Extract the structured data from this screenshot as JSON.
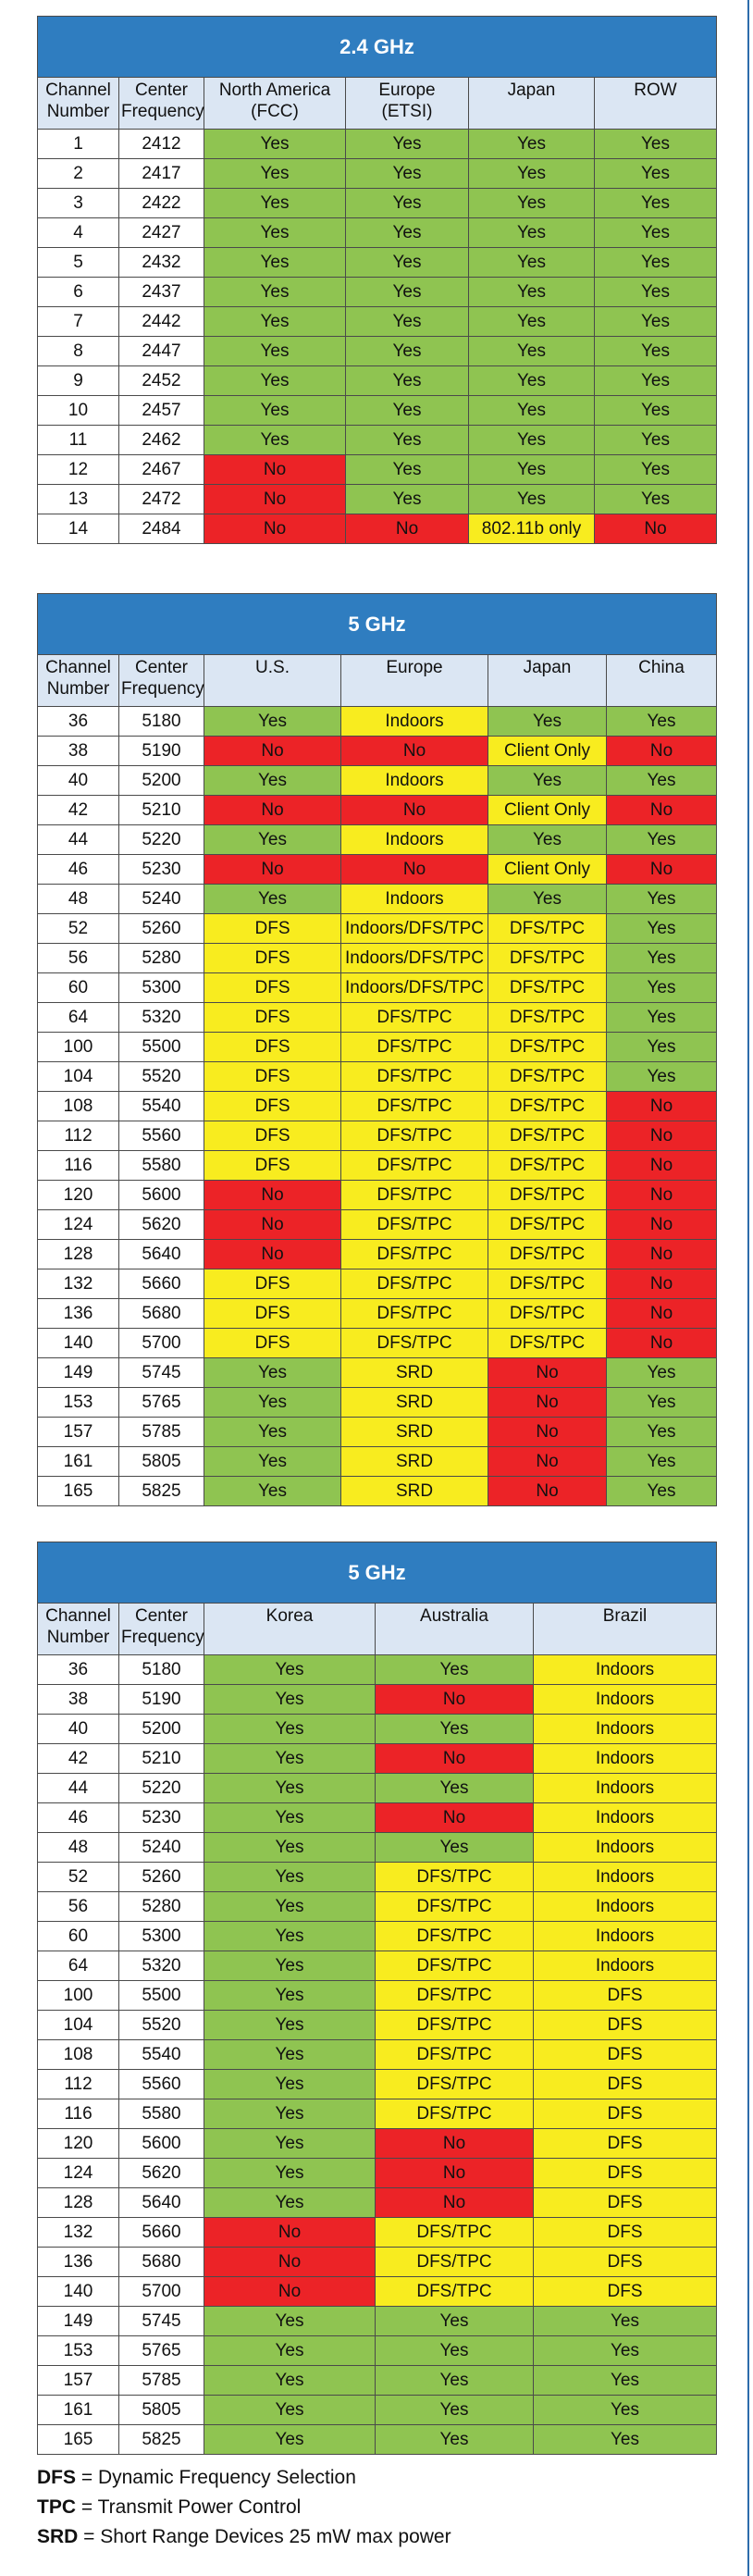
{
  "tables": [
    {
      "title": "2.4 GHz",
      "headers": [
        [
          "Channel",
          "Number"
        ],
        [
          "Center",
          "Frequency"
        ],
        [
          "North America",
          "(FCC)"
        ],
        [
          "Europe",
          "(ETSI)"
        ],
        [
          "Japan"
        ],
        [
          "ROW"
        ]
      ],
      "rows": [
        [
          "1",
          "2412",
          "Yes",
          "Yes",
          "Yes",
          "Yes"
        ],
        [
          "2",
          "2417",
          "Yes",
          "Yes",
          "Yes",
          "Yes"
        ],
        [
          "3",
          "2422",
          "Yes",
          "Yes",
          "Yes",
          "Yes"
        ],
        [
          "4",
          "2427",
          "Yes",
          "Yes",
          "Yes",
          "Yes"
        ],
        [
          "5",
          "2432",
          "Yes",
          "Yes",
          "Yes",
          "Yes"
        ],
        [
          "6",
          "2437",
          "Yes",
          "Yes",
          "Yes",
          "Yes"
        ],
        [
          "7",
          "2442",
          "Yes",
          "Yes",
          "Yes",
          "Yes"
        ],
        [
          "8",
          "2447",
          "Yes",
          "Yes",
          "Yes",
          "Yes"
        ],
        [
          "9",
          "2452",
          "Yes",
          "Yes",
          "Yes",
          "Yes"
        ],
        [
          "10",
          "2457",
          "Yes",
          "Yes",
          "Yes",
          "Yes"
        ],
        [
          "11",
          "2462",
          "Yes",
          "Yes",
          "Yes",
          "Yes"
        ],
        [
          "12",
          "2467",
          "No",
          "Yes",
          "Yes",
          "Yes"
        ],
        [
          "13",
          "2472",
          "No",
          "Yes",
          "Yes",
          "Yes"
        ],
        [
          "14",
          "2484",
          "No",
          "No",
          "802.11b only",
          "No"
        ]
      ]
    },
    {
      "title": "5 GHz",
      "headers": [
        [
          "Channel",
          "Number"
        ],
        [
          "Center",
          "Frequency"
        ],
        [
          "U.S."
        ],
        [
          "Europe"
        ],
        [
          "Japan"
        ],
        [
          "China"
        ]
      ],
      "rows": [
        [
          "36",
          "5180",
          "Yes",
          "Indoors",
          "Yes",
          "Yes"
        ],
        [
          "38",
          "5190",
          "No",
          "No",
          "Client Only",
          "No"
        ],
        [
          "40",
          "5200",
          "Yes",
          "Indoors",
          "Yes",
          "Yes"
        ],
        [
          "42",
          "5210",
          "No",
          "No",
          "Client Only",
          "No"
        ],
        [
          "44",
          "5220",
          "Yes",
          "Indoors",
          "Yes",
          "Yes"
        ],
        [
          "46",
          "5230",
          "No",
          "No",
          "Client Only",
          "No"
        ],
        [
          "48",
          "5240",
          "Yes",
          "Indoors",
          "Yes",
          "Yes"
        ],
        [
          "52",
          "5260",
          "DFS",
          "Indoors/DFS/TPC",
          "DFS/TPC",
          "Yes"
        ],
        [
          "56",
          "5280",
          "DFS",
          "Indoors/DFS/TPC",
          "DFS/TPC",
          "Yes"
        ],
        [
          "60",
          "5300",
          "DFS",
          "Indoors/DFS/TPC",
          "DFS/TPC",
          "Yes"
        ],
        [
          "64",
          "5320",
          "DFS",
          "DFS/TPC",
          "DFS/TPC",
          "Yes"
        ],
        [
          "100",
          "5500",
          "DFS",
          "DFS/TPC",
          "DFS/TPC",
          "Yes"
        ],
        [
          "104",
          "5520",
          "DFS",
          "DFS/TPC",
          "DFS/TPC",
          "Yes"
        ],
        [
          "108",
          "5540",
          "DFS",
          "DFS/TPC",
          "DFS/TPC",
          "No"
        ],
        [
          "112",
          "5560",
          "DFS",
          "DFS/TPC",
          "DFS/TPC",
          "No"
        ],
        [
          "116",
          "5580",
          "DFS",
          "DFS/TPC",
          "DFS/TPC",
          "No"
        ],
        [
          "120",
          "5600",
          "No",
          "DFS/TPC",
          "DFS/TPC",
          "No"
        ],
        [
          "124",
          "5620",
          "No",
          "DFS/TPC",
          "DFS/TPC",
          "No"
        ],
        [
          "128",
          "5640",
          "No",
          "DFS/TPC",
          "DFS/TPC",
          "No"
        ],
        [
          "132",
          "5660",
          "DFS",
          "DFS/TPC",
          "DFS/TPC",
          "No"
        ],
        [
          "136",
          "5680",
          "DFS",
          "DFS/TPC",
          "DFS/TPC",
          "No"
        ],
        [
          "140",
          "5700",
          "DFS",
          "DFS/TPC",
          "DFS/TPC",
          "No"
        ],
        [
          "149",
          "5745",
          "Yes",
          "SRD",
          "No",
          "Yes"
        ],
        [
          "153",
          "5765",
          "Yes",
          "SRD",
          "No",
          "Yes"
        ],
        [
          "157",
          "5785",
          "Yes",
          "SRD",
          "No",
          "Yes"
        ],
        [
          "161",
          "5805",
          "Yes",
          "SRD",
          "No",
          "Yes"
        ],
        [
          "165",
          "5825",
          "Yes",
          "SRD",
          "No",
          "Yes"
        ]
      ]
    },
    {
      "title": "5 GHz",
      "headers": [
        [
          "Channel",
          "Number"
        ],
        [
          "Center",
          "Frequency"
        ],
        [
          "Korea"
        ],
        [
          "Australia"
        ],
        [
          "Brazil"
        ]
      ],
      "rows": [
        [
          "36",
          "5180",
          "Yes",
          "Yes",
          "Indoors"
        ],
        [
          "38",
          "5190",
          "Yes",
          "No",
          "Indoors"
        ],
        [
          "40",
          "5200",
          "Yes",
          "Yes",
          "Indoors"
        ],
        [
          "42",
          "5210",
          "Yes",
          "No",
          "Indoors"
        ],
        [
          "44",
          "5220",
          "Yes",
          "Yes",
          "Indoors"
        ],
        [
          "46",
          "5230",
          "Yes",
          "No",
          "Indoors"
        ],
        [
          "48",
          "5240",
          "Yes",
          "Yes",
          "Indoors"
        ],
        [
          "52",
          "5260",
          "Yes",
          "DFS/TPC",
          "Indoors"
        ],
        [
          "56",
          "5280",
          "Yes",
          "DFS/TPC",
          "Indoors"
        ],
        [
          "60",
          "5300",
          "Yes",
          "DFS/TPC",
          "Indoors"
        ],
        [
          "64",
          "5320",
          "Yes",
          "DFS/TPC",
          "Indoors"
        ],
        [
          "100",
          "5500",
          "Yes",
          "DFS/TPC",
          "DFS"
        ],
        [
          "104",
          "5520",
          "Yes",
          "DFS/TPC",
          "DFS"
        ],
        [
          "108",
          "5540",
          "Yes",
          "DFS/TPC",
          "DFS"
        ],
        [
          "112",
          "5560",
          "Yes",
          "DFS/TPC",
          "DFS"
        ],
        [
          "116",
          "5580",
          "Yes",
          "DFS/TPC",
          "DFS"
        ],
        [
          "120",
          "5600",
          "Yes",
          "No",
          "DFS"
        ],
        [
          "124",
          "5620",
          "Yes",
          "No",
          "DFS"
        ],
        [
          "128",
          "5640",
          "Yes",
          "No",
          "DFS"
        ],
        [
          "132",
          "5660",
          "No",
          "DFS/TPC",
          "DFS"
        ],
        [
          "136",
          "5680",
          "No",
          "DFS/TPC",
          "DFS"
        ],
        [
          "140",
          "5700",
          "No",
          "DFS/TPC",
          "DFS"
        ],
        [
          "149",
          "5745",
          "Yes",
          "Yes",
          "Yes"
        ],
        [
          "153",
          "5765",
          "Yes",
          "Yes",
          "Yes"
        ],
        [
          "157",
          "5785",
          "Yes",
          "Yes",
          "Yes"
        ],
        [
          "161",
          "5805",
          "Yes",
          "Yes",
          "Yes"
        ],
        [
          "165",
          "5825",
          "Yes",
          "Yes",
          "Yes"
        ]
      ]
    }
  ],
  "legend": [
    {
      "term": "DFS",
      "separator": " = ",
      "definition": "Dynamic Frequency Selection"
    },
    {
      "term": "TPC",
      "separator": " = ",
      "definition": "Transmit Power Control"
    },
    {
      "term": "SRD",
      "separator": " = ",
      "definition": "Short Range Devices 25 mW max power"
    }
  ],
  "colors": {
    "header_bar": "#2f7dc0",
    "header_row": "#dbe6f3",
    "green": "#8fc451",
    "red": "#ec2327",
    "yellow": "#f8ec1f",
    "border": "#4a4a4a"
  }
}
